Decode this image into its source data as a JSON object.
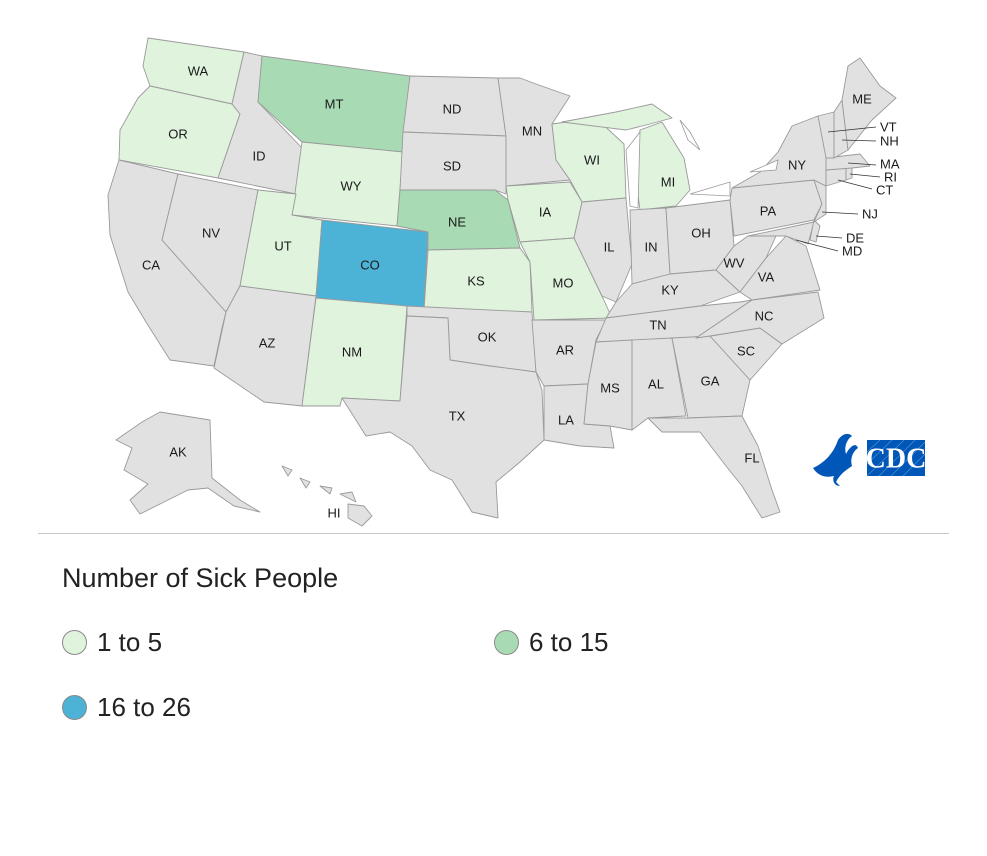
{
  "legend": {
    "title": "Number of Sick People",
    "items": [
      {
        "label": "1 to 5",
        "color": "#dff3dd"
      },
      {
        "label": "6 to 15",
        "color": "#a8dbb4"
      },
      {
        "label": "16 to 26",
        "color": "#4db3d6"
      }
    ]
  },
  "colors": {
    "no_cases": "#e1e1e1",
    "border": "#9a9a9a",
    "low": "#dff3dd",
    "mid": "#a8dbb4",
    "high": "#4db3d6"
  },
  "logo": {
    "text": "CDC",
    "color": "#0057b8"
  },
  "states": [
    {
      "code": "WA",
      "level": "low"
    },
    {
      "code": "OR",
      "level": "low"
    },
    {
      "code": "CA",
      "level": "none"
    },
    {
      "code": "ID",
      "level": "none"
    },
    {
      "code": "NV",
      "level": "none"
    },
    {
      "code": "MT",
      "level": "mid"
    },
    {
      "code": "WY",
      "level": "low"
    },
    {
      "code": "UT",
      "level": "low"
    },
    {
      "code": "AZ",
      "level": "none"
    },
    {
      "code": "CO",
      "level": "high"
    },
    {
      "code": "NM",
      "level": "low"
    },
    {
      "code": "ND",
      "level": "none"
    },
    {
      "code": "SD",
      "level": "none"
    },
    {
      "code": "NE",
      "level": "mid"
    },
    {
      "code": "KS",
      "level": "low"
    },
    {
      "code": "OK",
      "level": "none"
    },
    {
      "code": "TX",
      "level": "none"
    },
    {
      "code": "MN",
      "level": "none"
    },
    {
      "code": "IA",
      "level": "low"
    },
    {
      "code": "MO",
      "level": "low"
    },
    {
      "code": "AR",
      "level": "none"
    },
    {
      "code": "LA",
      "level": "none"
    },
    {
      "code": "WI",
      "level": "low"
    },
    {
      "code": "IL",
      "level": "none"
    },
    {
      "code": "MI",
      "level": "low"
    },
    {
      "code": "IN",
      "level": "none"
    },
    {
      "code": "OH",
      "level": "none"
    },
    {
      "code": "KY",
      "level": "none"
    },
    {
      "code": "TN",
      "level": "none"
    },
    {
      "code": "MS",
      "level": "none"
    },
    {
      "code": "AL",
      "level": "none"
    },
    {
      "code": "GA",
      "level": "none"
    },
    {
      "code": "FL",
      "level": "none"
    },
    {
      "code": "SC",
      "level": "none"
    },
    {
      "code": "NC",
      "level": "none"
    },
    {
      "code": "VA",
      "level": "none"
    },
    {
      "code": "WV",
      "level": "none"
    },
    {
      "code": "PA",
      "level": "none"
    },
    {
      "code": "NY",
      "level": "none"
    },
    {
      "code": "ME",
      "level": "none"
    },
    {
      "code": "VT",
      "level": "none"
    },
    {
      "code": "NH",
      "level": "none"
    },
    {
      "code": "MA",
      "level": "none"
    },
    {
      "code": "RI",
      "level": "none"
    },
    {
      "code": "CT",
      "level": "none"
    },
    {
      "code": "NJ",
      "level": "none"
    },
    {
      "code": "DE",
      "level": "none"
    },
    {
      "code": "MD",
      "level": "none"
    },
    {
      "code": "AK",
      "level": "none"
    },
    {
      "code": "HI",
      "level": "none"
    }
  ]
}
